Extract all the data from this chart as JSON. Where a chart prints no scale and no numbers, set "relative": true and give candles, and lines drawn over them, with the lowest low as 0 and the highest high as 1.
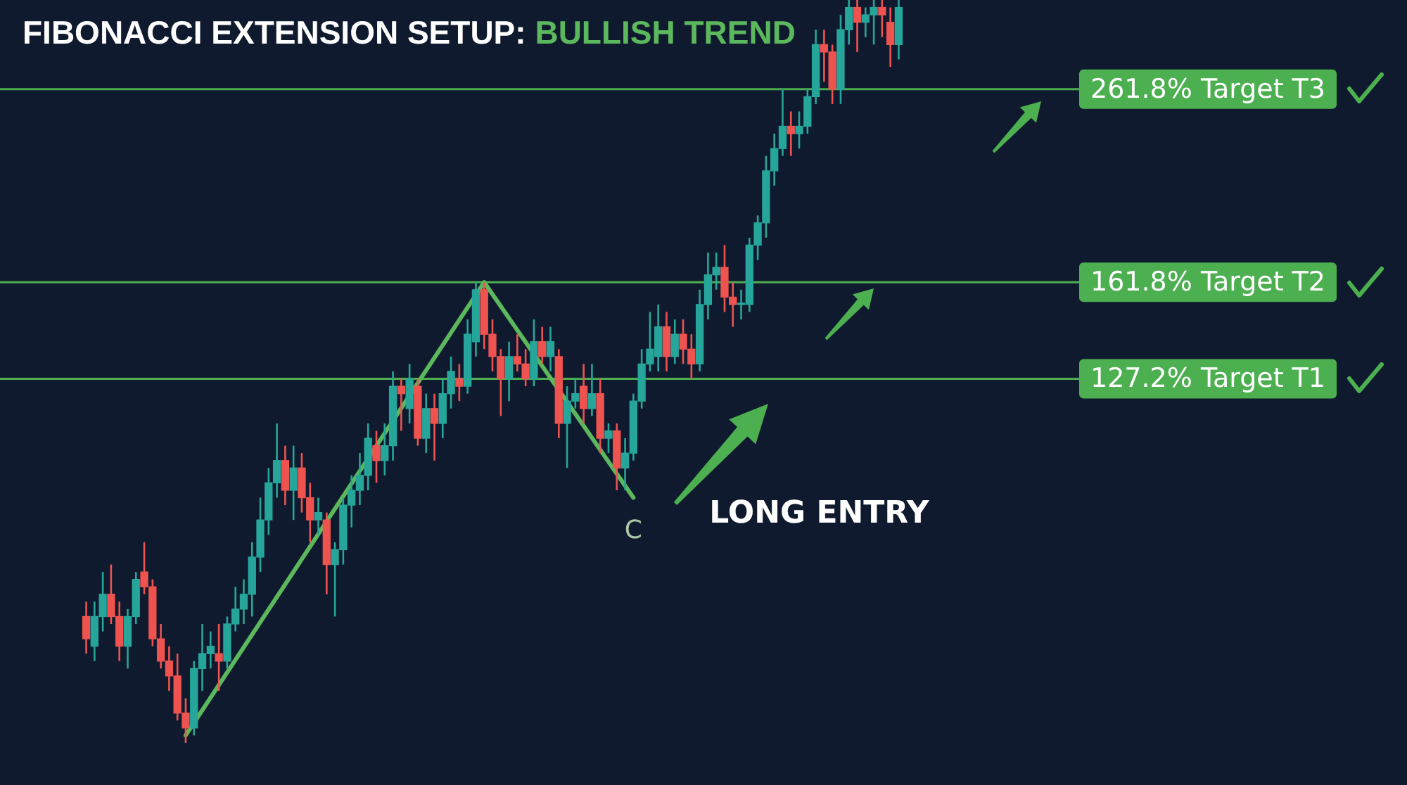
{
  "chart_data": {
    "type": "candlestick",
    "title": "FIBONACCI EXTENSION SETUP: BULLISH TREND",
    "relative": true,
    "categories": [
      null,
      null,
      null,
      null,
      null,
      null,
      null,
      null,
      null,
      null,
      null,
      null,
      null,
      null,
      null,
      null,
      null,
      null,
      null,
      null,
      null,
      null,
      null,
      null,
      null,
      null,
      null,
      null,
      null,
      null,
      null,
      null,
      null,
      null,
      null,
      null,
      null,
      null,
      null,
      null,
      null,
      null,
      null,
      null,
      null,
      null,
      null,
      null,
      null,
      null,
      null,
      null,
      null,
      null,
      null,
      null,
      null,
      null,
      null,
      null,
      null,
      null,
      null,
      null,
      null,
      null,
      null,
      null,
      null,
      null,
      null,
      null,
      null,
      null,
      null,
      null,
      null,
      null,
      null,
      null,
      null,
      null,
      null,
      null,
      null,
      null,
      null,
      null,
      null,
      null,
      null,
      null,
      null,
      null,
      null,
      null,
      null,
      null,
      null
    ],
    "ohlc": [
      [
        0.17,
        0.19,
        0.12,
        0.14
      ],
      [
        0.13,
        0.19,
        0.11,
        0.17
      ],
      [
        0.17,
        0.23,
        0.15,
        0.2
      ],
      [
        0.2,
        0.24,
        0.16,
        0.17
      ],
      [
        0.17,
        0.19,
        0.11,
        0.13
      ],
      [
        0.13,
        0.18,
        0.1,
        0.17
      ],
      [
        0.17,
        0.23,
        0.16,
        0.22
      ],
      [
        0.23,
        0.27,
        0.2,
        0.21
      ],
      [
        0.21,
        0.22,
        0.13,
        0.14
      ],
      [
        0.14,
        0.16,
        0.1,
        0.11
      ],
      [
        0.11,
        0.13,
        0.07,
        0.09
      ],
      [
        0.09,
        0.12,
        0.03,
        0.04
      ],
      [
        0.04,
        0.06,
        0,
        0.02
      ],
      [
        0.02,
        0.11,
        0.01,
        0.1
      ],
      [
        0.1,
        0.16,
        0.07,
        0.12
      ],
      [
        0.12,
        0.15,
        0.1,
        0.13
      ],
      [
        0.12,
        0.16,
        0.07,
        0.11
      ],
      [
        0.11,
        0.17,
        0.1,
        0.16
      ],
      [
        0.16,
        0.21,
        0.15,
        0.18
      ],
      [
        0.18,
        0.22,
        0.16,
        0.2
      ],
      [
        0.2,
        0.27,
        0.17,
        0.25
      ],
      [
        0.25,
        0.33,
        0.23,
        0.3
      ],
      [
        0.3,
        0.37,
        0.28,
        0.35
      ],
      [
        0.35,
        0.43,
        0.33,
        0.38
      ],
      [
        0.38,
        0.4,
        0.32,
        0.34
      ],
      [
        0.34,
        0.4,
        0.3,
        0.37
      ],
      [
        0.37,
        0.39,
        0.31,
        0.33
      ],
      [
        0.33,
        0.35,
        0.27,
        0.3
      ],
      [
        0.3,
        0.33,
        0.28,
        0.31
      ],
      [
        0.3,
        0.31,
        0.2,
        0.24
      ],
      [
        0.24,
        0.27,
        0.17,
        0.26
      ],
      [
        0.26,
        0.33,
        0.24,
        0.32
      ],
      [
        0.32,
        0.36,
        0.29,
        0.34
      ],
      [
        0.34,
        0.39,
        0.32,
        0.36
      ],
      [
        0.36,
        0.43,
        0.34,
        0.41
      ],
      [
        0.4,
        0.42,
        0.35,
        0.38
      ],
      [
        0.38,
        0.43,
        0.36,
        0.4
      ],
      [
        0.4,
        0.5,
        0.38,
        0.48
      ],
      [
        0.48,
        0.49,
        0.42,
        0.47
      ],
      [
        0.45,
        0.51,
        0.43,
        0.49
      ],
      [
        0.48,
        0.49,
        0.4,
        0.41
      ],
      [
        0.41,
        0.47,
        0.39,
        0.45
      ],
      [
        0.45,
        0.47,
        0.38,
        0.43
      ],
      [
        0.43,
        0.49,
        0.41,
        0.47
      ],
      [
        0.47,
        0.52,
        0.45,
        0.5
      ],
      [
        0.49,
        0.51,
        0.46,
        0.48
      ],
      [
        0.48,
        0.57,
        0.47,
        0.55
      ],
      [
        0.54,
        0.62,
        0.52,
        0.61
      ],
      [
        0.61,
        0.62,
        0.53,
        0.55
      ],
      [
        0.55,
        0.57,
        0.5,
        0.52
      ],
      [
        0.52,
        0.53,
        0.44,
        0.49
      ],
      [
        0.49,
        0.54,
        0.46,
        0.52
      ],
      [
        0.52,
        0.55,
        0.5,
        0.51
      ],
      [
        0.51,
        0.53,
        0.48,
        0.49
      ],
      [
        0.49,
        0.57,
        0.48,
        0.54
      ],
      [
        0.54,
        0.56,
        0.51,
        0.52
      ],
      [
        0.52,
        0.56,
        0.5,
        0.54
      ],
      [
        0.52,
        0.53,
        0.41,
        0.43
      ],
      [
        0.43,
        0.48,
        0.37,
        0.46
      ],
      [
        0.46,
        0.49,
        0.45,
        0.47
      ],
      [
        0.48,
        0.51,
        0.43,
        0.45
      ],
      [
        0.45,
        0.51,
        0.44,
        0.47
      ],
      [
        0.47,
        0.49,
        0.39,
        0.41
      ],
      [
        0.41,
        0.43,
        0.39,
        0.42
      ],
      [
        0.42,
        0.43,
        0.34,
        0.37
      ],
      [
        0.37,
        0.41,
        0.34,
        0.39
      ],
      [
        0.39,
        0.47,
        0.38,
        0.46
      ],
      [
        0.46,
        0.53,
        0.45,
        0.51
      ],
      [
        0.51,
        0.58,
        0.5,
        0.53
      ],
      [
        0.52,
        0.59,
        0.5,
        0.56
      ],
      [
        0.56,
        0.58,
        0.5,
        0.52
      ],
      [
        0.52,
        0.57,
        0.51,
        0.55
      ],
      [
        0.55,
        0.57,
        0.51,
        0.53
      ],
      [
        0.53,
        0.55,
        0.49,
        0.51
      ],
      [
        0.51,
        0.61,
        0.5,
        0.59
      ],
      [
        0.59,
        0.66,
        0.57,
        0.63
      ],
      [
        0.63,
        0.66,
        0.61,
        0.64
      ],
      [
        0.64,
        0.67,
        0.58,
        0.6
      ],
      [
        0.6,
        0.62,
        0.56,
        0.59
      ],
      [
        0.59,
        0.61,
        0.57,
        0.59
      ],
      [
        0.59,
        0.68,
        0.58,
        0.67
      ],
      [
        0.67,
        0.71,
        0.65,
        0.7
      ],
      [
        0.7,
        0.79,
        0.68,
        0.77
      ],
      [
        0.77,
        0.82,
        0.75,
        0.8
      ],
      [
        0.8,
        0.88,
        0.79,
        0.83
      ],
      [
        0.83,
        0.85,
        0.79,
        0.82
      ],
      [
        0.82,
        0.85,
        0.8,
        0.83
      ],
      [
        0.83,
        0.88,
        0.82,
        0.87
      ],
      [
        0.87,
        0.96,
        0.86,
        0.94
      ],
      [
        0.94,
        0.96,
        0.89,
        0.93
      ],
      [
        0.93,
        0.94,
        0.86,
        0.88
      ],
      [
        0.88,
        0.98,
        0.86,
        0.96
      ],
      [
        0.96,
        1,
        0.94,
        0.99
      ],
      [
        0.99,
        1,
        0.93,
        0.97
      ],
      [
        0.97,
        0.99,
        0.95,
        0.98
      ],
      [
        0.98,
        1,
        0.94,
        0.99
      ],
      [
        0.99,
        1,
        0.95,
        0.98
      ],
      [
        0.97,
        0.99,
        0.91,
        0.94
      ],
      [
        0.94,
        1,
        0.92,
        0.99
      ]
    ],
    "series": [
      {
        "type": "line",
        "values": [
          null,
          null,
          null,
          null,
          null,
          null,
          null,
          null,
          null,
          null,
          null,
          null,
          0.01,
          null,
          null,
          null,
          null,
          null,
          null,
          null,
          null,
          null,
          null,
          null,
          null,
          null,
          null,
          null,
          null,
          null,
          null,
          null,
          null,
          null,
          null,
          null,
          null,
          null,
          null,
          null,
          null,
          null,
          null,
          null,
          null,
          null,
          null,
          null,
          0.62,
          null,
          null,
          null,
          null,
          null,
          null,
          null,
          null,
          null,
          null,
          null,
          null,
          null,
          null,
          null,
          null,
          null,
          0.33,
          null,
          null,
          null,
          null,
          null,
          null,
          null,
          null,
          null,
          null,
          null,
          null,
          null,
          null,
          null,
          null,
          null,
          null,
          null,
          null,
          null,
          null,
          null,
          null,
          null,
          null,
          null,
          null,
          null,
          null,
          null,
          null
        ],
        "color": "#5cb85c"
      }
    ],
    "ref_lines": [
      {
        "axis": "y",
        "value": 0.49,
        "label": "127.2% Target T1",
        "color": "#4caf50"
      },
      {
        "axis": "y",
        "value": 0.62,
        "label": "161.8% Target T2",
        "color": "#4caf50"
      },
      {
        "axis": "y",
        "value": 0.88,
        "label": "261.8% Target T3",
        "color": "#4caf50"
      }
    ],
    "annotations": [
      "C",
      "LONG ENTRY"
    ]
  }
}
